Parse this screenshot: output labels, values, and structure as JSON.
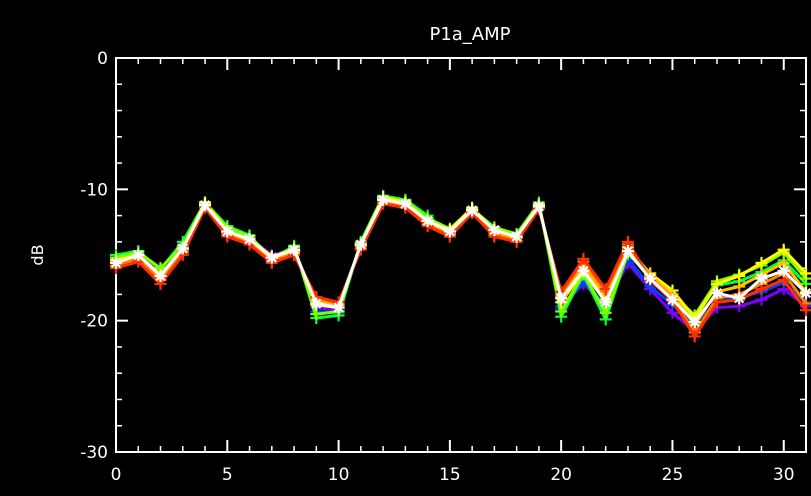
{
  "chart_data": {
    "type": "line",
    "title": "P1a_AMP",
    "xlabel": "",
    "ylabel": "dB",
    "xlim": [
      0,
      31
    ],
    "ylim": [
      -30,
      0
    ],
    "xticks": [
      0,
      5,
      10,
      15,
      20,
      25,
      30
    ],
    "yticks": [
      0,
      -10,
      -20,
      -30
    ],
    "grid": false,
    "background": "#000000",
    "axis_color": "#ffffff",
    "series": [
      {
        "color": "#8000ff",
        "marker": "plus",
        "x": [
          0,
          1,
          2,
          3,
          4,
          5,
          6,
          7,
          8,
          9,
          10,
          11,
          12,
          13,
          14,
          15,
          16,
          17,
          18,
          19,
          20,
          21,
          22,
          23,
          24,
          25,
          26,
          27,
          28,
          29,
          30,
          31
        ],
        "values": [
          -15.3,
          -15.0,
          -16.3,
          -14.2,
          -11.3,
          -13.0,
          -13.7,
          -15.0,
          -14.6,
          -19.0,
          -19.2,
          -14.3,
          -10.8,
          -11.0,
          -12.3,
          -13.1,
          -11.7,
          -13.0,
          -13.6,
          -11.3,
          -18.9,
          -17.2,
          -18.8,
          -15.6,
          -17.6,
          -19.4,
          -20.8,
          -19.0,
          -18.9,
          -18.4,
          -17.6,
          -18.9
        ]
      },
      {
        "color": "#0040ff",
        "marker": "plus",
        "x": [
          0,
          1,
          2,
          3,
          4,
          5,
          6,
          7,
          8,
          9,
          10,
          11,
          12,
          13,
          14,
          15,
          16,
          17,
          18,
          19,
          20,
          21,
          22,
          23,
          24,
          25,
          26,
          27,
          28,
          29,
          30,
          31
        ],
        "values": [
          -15.5,
          -15.2,
          -16.4,
          -14.4,
          -11.2,
          -13.1,
          -13.8,
          -15.3,
          -14.5,
          -19.3,
          -19.4,
          -14.2,
          -10.7,
          -11.1,
          -12.5,
          -13.2,
          -11.5,
          -13.1,
          -13.7,
          -11.2,
          -19.1,
          -17.0,
          -18.9,
          -15.3,
          -17.4,
          -18.8,
          -20.2,
          -18.6,
          -18.2,
          -17.8,
          -17.1,
          -18.6
        ]
      },
      {
        "color": "#00ff40",
        "marker": "plus",
        "x": [
          0,
          1,
          2,
          3,
          4,
          5,
          6,
          7,
          8,
          9,
          10,
          11,
          12,
          13,
          14,
          15,
          16,
          17,
          18,
          19,
          20,
          21,
          22,
          23,
          24,
          25,
          26,
          27,
          28,
          29,
          30,
          31
        ],
        "values": [
          -15.0,
          -14.7,
          -16.1,
          -14.0,
          -11.0,
          -12.8,
          -13.5,
          -15.4,
          -14.3,
          -19.8,
          -19.6,
          -14.0,
          -10.5,
          -10.8,
          -12.0,
          -13.4,
          -11.6,
          -13.0,
          -13.5,
          -11.0,
          -19.7,
          -16.5,
          -19.9,
          -14.8,
          -16.8,
          -18.2,
          -19.8,
          -17.3,
          -17.0,
          -16.3,
          -15.4,
          -17.2
        ]
      },
      {
        "color": "#80ff00",
        "marker": "plus",
        "x": [
          0,
          1,
          2,
          3,
          4,
          5,
          6,
          7,
          8,
          9,
          10,
          11,
          12,
          13,
          14,
          15,
          16,
          17,
          18,
          19,
          20,
          21,
          22,
          23,
          24,
          25,
          26,
          27,
          28,
          29,
          30,
          31
        ],
        "values": [
          -15.2,
          -14.8,
          -16.0,
          -14.3,
          -11.1,
          -12.9,
          -13.6,
          -15.2,
          -14.4,
          -19.5,
          -19.3,
          -14.1,
          -10.6,
          -10.9,
          -12.2,
          -13.0,
          -11.5,
          -12.9,
          -13.4,
          -11.1,
          -19.3,
          -16.4,
          -19.4,
          -14.9,
          -16.6,
          -18.0,
          -19.6,
          -17.0,
          -16.5,
          -15.8,
          -14.8,
          -16.8
        ]
      },
      {
        "color": "#ffff00",
        "marker": "plus",
        "x": [
          0,
          1,
          2,
          3,
          4,
          5,
          6,
          7,
          8,
          9,
          10,
          11,
          12,
          13,
          14,
          15,
          16,
          17,
          18,
          19,
          20,
          21,
          22,
          23,
          24,
          25,
          26,
          27,
          28,
          29,
          30,
          31
        ],
        "values": [
          -15.4,
          -15.0,
          -16.5,
          -14.5,
          -11.0,
          -13.2,
          -13.8,
          -15.1,
          -14.7,
          -18.8,
          -19.0,
          -14.2,
          -10.6,
          -11.0,
          -12.4,
          -13.1,
          -11.4,
          -13.2,
          -13.6,
          -11.2,
          -18.6,
          -16.2,
          -18.4,
          -14.6,
          -16.4,
          -17.7,
          -19.8,
          -17.2,
          -16.6,
          -15.6,
          -14.6,
          -16.4
        ]
      },
      {
        "color": "#ffc000",
        "marker": "plus",
        "x": [
          0,
          1,
          2,
          3,
          4,
          5,
          6,
          7,
          8,
          9,
          10,
          11,
          12,
          13,
          14,
          15,
          16,
          17,
          18,
          19,
          20,
          21,
          22,
          23,
          24,
          25,
          26,
          27,
          28,
          29,
          30,
          31
        ],
        "values": [
          -15.6,
          -15.1,
          -16.7,
          -14.6,
          -11.2,
          -13.3,
          -13.9,
          -15.3,
          -14.8,
          -18.5,
          -18.8,
          -14.3,
          -10.8,
          -11.2,
          -12.5,
          -13.3,
          -11.6,
          -13.3,
          -13.7,
          -11.3,
          -18.2,
          -15.8,
          -18.1,
          -14.4,
          -16.5,
          -18.0,
          -20.3,
          -17.8,
          -17.4,
          -16.5,
          -15.6,
          -17.8
        ]
      },
      {
        "color": "#ff8000",
        "marker": "plus",
        "x": [
          0,
          1,
          2,
          3,
          4,
          5,
          6,
          7,
          8,
          9,
          10,
          11,
          12,
          13,
          14,
          15,
          16,
          17,
          18,
          19,
          20,
          21,
          22,
          23,
          24,
          25,
          26,
          27,
          28,
          29,
          30,
          31
        ],
        "values": [
          -15.8,
          -15.3,
          -16.9,
          -14.8,
          -11.3,
          -13.5,
          -14.1,
          -15.5,
          -14.9,
          -18.3,
          -18.7,
          -14.5,
          -11.0,
          -11.3,
          -12.7,
          -13.5,
          -11.7,
          -13.5,
          -13.9,
          -11.4,
          -18.0,
          -15.5,
          -17.8,
          -14.2,
          -16.7,
          -18.3,
          -20.9,
          -18.3,
          -18.0,
          -17.2,
          -16.4,
          -18.7
        ]
      },
      {
        "color": "#ff3000",
        "marker": "plus",
        "x": [
          0,
          1,
          2,
          3,
          4,
          5,
          6,
          7,
          8,
          9,
          10,
          11,
          12,
          13,
          14,
          15,
          16,
          17,
          18,
          19,
          20,
          21,
          22,
          23,
          24,
          25,
          26,
          27,
          28,
          29,
          30,
          31
        ],
        "values": [
          -16.0,
          -15.5,
          -17.2,
          -15.0,
          -11.4,
          -13.6,
          -14.2,
          -15.6,
          -15.0,
          -18.2,
          -18.6,
          -14.6,
          -11.1,
          -11.4,
          -12.8,
          -13.6,
          -11.8,
          -13.6,
          -14.0,
          -11.5,
          -17.8,
          -15.3,
          -17.6,
          -14.0,
          -16.9,
          -18.5,
          -21.2,
          -18.6,
          -18.4,
          -17.6,
          -16.9,
          -19.2
        ]
      },
      {
        "color": "#ffffff",
        "marker": "asterisk",
        "x": [
          0,
          1,
          2,
          3,
          4,
          5,
          6,
          7,
          8,
          9,
          10,
          11,
          12,
          13,
          14,
          15,
          16,
          17,
          18,
          19,
          20,
          21,
          22,
          23,
          24,
          25,
          26,
          27,
          28,
          29,
          30,
          31
        ],
        "values": [
          -15.6,
          -15.0,
          -16.6,
          -14.5,
          -11.2,
          -13.2,
          -13.8,
          -15.2,
          -14.6,
          -18.7,
          -19.0,
          -14.2,
          -10.8,
          -11.1,
          -12.4,
          -13.2,
          -11.6,
          -13.1,
          -13.6,
          -11.3,
          -18.3,
          -16.2,
          -18.6,
          -14.7,
          -16.8,
          -18.4,
          -20.1,
          -17.9,
          -18.3,
          -16.8,
          -16.2,
          -17.9
        ]
      }
    ]
  }
}
